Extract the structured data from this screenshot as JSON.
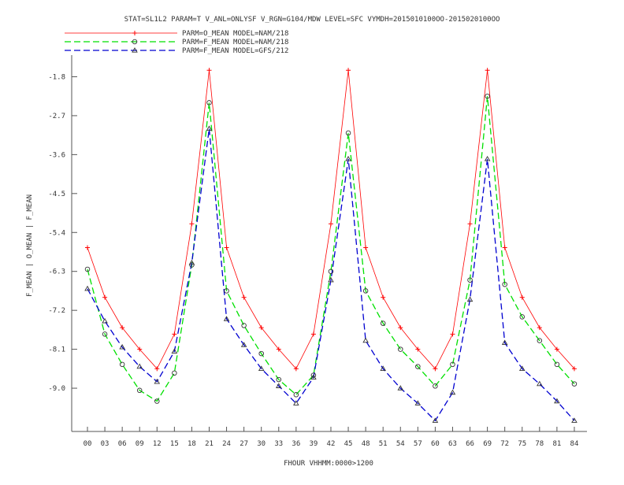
{
  "chart_data": {
    "type": "line",
    "title": "STAT=SL1L2 PARAM=T V_ANL=ONLYSF V_RGN=G104/MDW LEVEL=SFC VYMDH=2015010100OO-2015020100OO",
    "xlabel": "FHOUR VHHMM:0000>1200",
    "ylabel": "F_MEAN | O_MEAN | F_MEAN",
    "categories": [
      "00",
      "03",
      "06",
      "09",
      "12",
      "15",
      "18",
      "21",
      "24",
      "27",
      "30",
      "33",
      "36",
      "39",
      "42",
      "45",
      "48",
      "51",
      "54",
      "57",
      "60",
      "63",
      "66",
      "69",
      "72",
      "75",
      "78",
      "81",
      "84"
    ],
    "yticks": [
      "-1.8",
      "-2.7",
      "-3.6",
      "-4.5",
      "-5.4",
      "-6.3",
      "-7.2",
      "-8.1",
      "-9.0"
    ],
    "ylim": [
      -10.0,
      -1.3
    ],
    "legend_position": "top-left",
    "series": [
      {
        "name": "PARM=O_MEAN MODEL=NAM/218",
        "color": "#ff0000",
        "dash": "solid",
        "marker": "plus",
        "values": [
          -5.75,
          -6.9,
          -7.6,
          -8.1,
          -8.55,
          -7.75,
          -5.2,
          -1.65,
          -5.75,
          -6.9,
          -7.6,
          -8.1,
          -8.55,
          -7.75,
          -5.2,
          -1.65,
          -5.75,
          -6.9,
          -7.6,
          -8.1,
          -8.55,
          -7.75,
          -5.2,
          -1.65,
          -5.75,
          -6.9,
          -7.6,
          -8.1,
          -8.55
        ]
      },
      {
        "name": "PARM=F_MEAN MODEL=NAM/218",
        "color": "#00e000",
        "dash": "dashed",
        "marker": "circle",
        "values": [
          -6.25,
          -7.75,
          -8.45,
          -9.05,
          -9.3,
          -8.65,
          -6.15,
          -2.4,
          -6.75,
          -7.55,
          -8.2,
          -8.8,
          -9.15,
          -8.7,
          -6.3,
          -3.1,
          -6.75,
          -7.5,
          -8.1,
          -8.5,
          -8.95,
          -8.45,
          -6.5,
          -2.25,
          -6.6,
          -7.35,
          -7.9,
          -8.45,
          -8.9
        ]
      },
      {
        "name": "PARM=F_MEAN MODEL=GFS/212",
        "color": "#0000d0",
        "dash": "dashed",
        "marker": "triangle",
        "values": [
          -6.7,
          -7.45,
          -8.05,
          -8.5,
          -8.85,
          -8.15,
          -6.1,
          -3.0,
          -7.4,
          -8.0,
          -8.55,
          -8.95,
          -9.35,
          -8.75,
          -6.5,
          -3.7,
          -7.9,
          -8.55,
          -9.0,
          -9.35,
          -9.75,
          -9.1,
          -6.95,
          -3.7,
          -7.95,
          -8.55,
          -8.9,
          -9.3,
          -9.75
        ]
      }
    ]
  }
}
